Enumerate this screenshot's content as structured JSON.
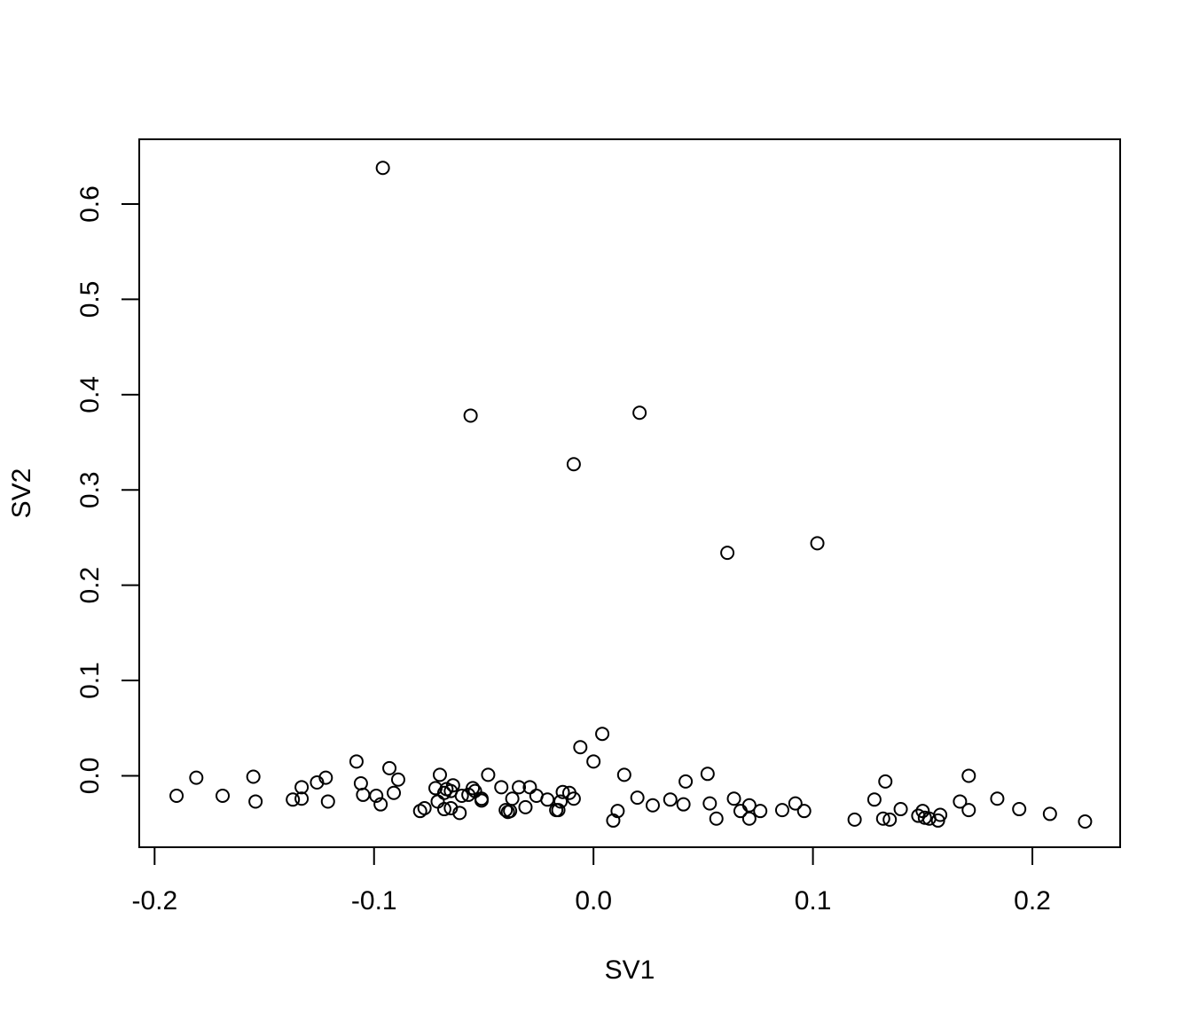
{
  "chart_data": {
    "type": "scatter",
    "title": "",
    "xlabel": "SV1",
    "ylabel": "SV2",
    "xlim": [
      -0.207,
      0.24
    ],
    "ylim": [
      -0.075,
      0.668
    ],
    "xticks": [
      -0.2,
      -0.1,
      0.0,
      0.1,
      0.2
    ],
    "xtick_labels": [
      "-0.2",
      "-0.1",
      "0.0",
      "0.1",
      "0.2"
    ],
    "yticks": [
      0.0,
      0.1,
      0.2,
      0.3,
      0.4,
      0.5,
      0.6
    ],
    "ytick_labels": [
      "0.0",
      "0.1",
      "0.2",
      "0.3",
      "0.4",
      "0.5",
      "0.6"
    ],
    "grid": false,
    "marker": "open-circle",
    "series": [
      {
        "x": [
          -0.096,
          -0.056,
          0.021,
          -0.009,
          0.102,
          0.061,
          0.004,
          -0.006,
          0.0,
          -0.108,
          -0.093,
          -0.07,
          -0.048,
          0.014,
          0.052,
          0.171,
          -0.181,
          -0.155,
          -0.122,
          -0.126,
          -0.089,
          -0.133,
          -0.106,
          -0.064,
          -0.067,
          -0.072,
          -0.055,
          -0.029,
          -0.034,
          -0.042,
          -0.014,
          -0.011,
          -0.169,
          -0.19,
          -0.154,
          -0.137,
          -0.133,
          -0.121,
          -0.105,
          -0.099,
          -0.091,
          -0.097,
          -0.071,
          -0.068,
          -0.065,
          -0.06,
          -0.057,
          -0.054,
          -0.051,
          -0.051,
          -0.037,
          -0.026,
          -0.021,
          -0.015,
          -0.009,
          -0.079,
          -0.077,
          -0.068,
          -0.065,
          -0.061,
          -0.04,
          -0.039,
          -0.038,
          -0.031,
          -0.017,
          -0.016,
          0.009,
          0.011,
          0.02,
          0.027,
          0.035,
          0.041,
          0.042,
          0.053,
          0.056,
          0.064,
          0.067,
          0.071,
          0.071,
          0.076,
          0.086,
          0.092,
          0.096,
          0.119,
          0.128,
          0.132,
          0.133,
          0.135,
          0.14,
          0.148,
          0.15,
          0.151,
          0.153,
          0.157,
          0.158,
          0.167,
          0.171,
          0.184,
          0.194,
          0.208,
          0.224
        ],
        "y": [
          0.638,
          0.378,
          0.381,
          0.327,
          0.244,
          0.234,
          0.044,
          0.03,
          0.015,
          0.015,
          0.008,
          0.001,
          0.001,
          0.001,
          0.002,
          0.0,
          -0.002,
          -0.001,
          -0.002,
          -0.007,
          -0.004,
          -0.012,
          -0.008,
          -0.01,
          -0.014,
          -0.013,
          -0.013,
          -0.012,
          -0.012,
          -0.012,
          -0.017,
          -0.018,
          -0.021,
          -0.021,
          -0.027,
          -0.025,
          -0.024,
          -0.027,
          -0.02,
          -0.021,
          -0.018,
          -0.03,
          -0.027,
          -0.018,
          -0.016,
          -0.021,
          -0.02,
          -0.016,
          -0.024,
          -0.026,
          -0.024,
          -0.021,
          -0.025,
          -0.027,
          -0.024,
          -0.037,
          -0.034,
          -0.035,
          -0.034,
          -0.039,
          -0.036,
          -0.038,
          -0.037,
          -0.033,
          -0.036,
          -0.036,
          -0.047,
          -0.037,
          -0.023,
          -0.031,
          -0.025,
          -0.03,
          -0.006,
          -0.029,
          -0.045,
          -0.024,
          -0.037,
          -0.031,
          -0.045,
          -0.037,
          -0.036,
          -0.029,
          -0.037,
          -0.046,
          -0.025,
          -0.045,
          -0.006,
          -0.046,
          -0.035,
          -0.042,
          -0.037,
          -0.044,
          -0.045,
          -0.047,
          -0.041,
          -0.027,
          -0.036,
          -0.024,
          -0.035,
          -0.04,
          -0.048
        ]
      }
    ]
  }
}
